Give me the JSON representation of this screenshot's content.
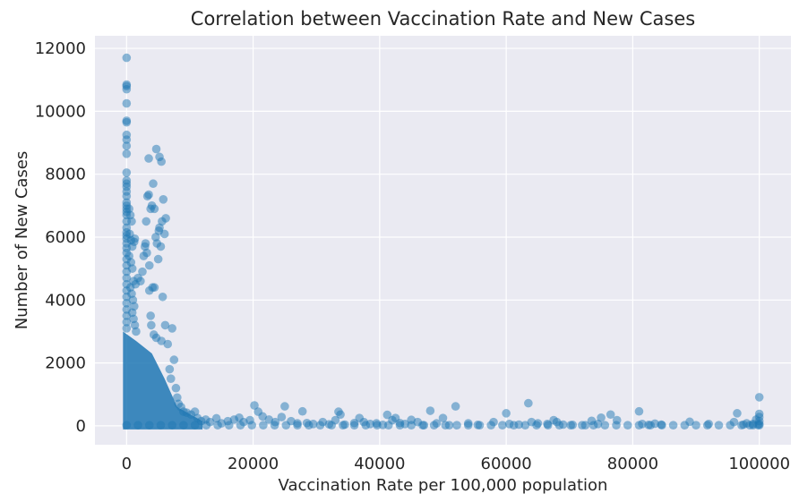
{
  "chart_data": {
    "type": "scatter",
    "title": "Correlation between Vaccination Rate and New Cases",
    "xlabel": "Vaccination Rate per 100,000 population",
    "ylabel": "Number of New Cases",
    "xlim": [
      -5000,
      105000
    ],
    "ylim": [
      -600,
      12400
    ],
    "xticks": [
      0,
      20000,
      40000,
      60000,
      80000,
      100000
    ],
    "yticks": [
      0,
      2000,
      4000,
      6000,
      8000,
      10000,
      12000
    ],
    "grid": true,
    "point_color": "#1f77b4",
    "point_alpha": 0.5,
    "series": [
      {
        "points": [
          [
            0,
            11700
          ],
          [
            0,
            10850
          ],
          [
            0,
            10800
          ],
          [
            0,
            10700
          ],
          [
            0,
            10250
          ],
          [
            0,
            9700
          ],
          [
            0,
            9650
          ],
          [
            0,
            9250
          ],
          [
            0,
            9100
          ],
          [
            0,
            8900
          ],
          [
            0,
            8650
          ],
          [
            0,
            8050
          ],
          [
            0,
            7800
          ],
          [
            0,
            7700
          ],
          [
            0,
            7600
          ],
          [
            0,
            7450
          ],
          [
            0,
            7300
          ],
          [
            0,
            7100
          ],
          [
            0,
            7000
          ],
          [
            0,
            6900
          ],
          [
            0,
            6800
          ],
          [
            0,
            6700
          ],
          [
            0,
            6500
          ],
          [
            0,
            6300
          ],
          [
            0,
            6150
          ],
          [
            0,
            6050
          ],
          [
            0,
            5950
          ],
          [
            0,
            5800
          ],
          [
            0,
            5650
          ],
          [
            0,
            5500
          ],
          [
            0,
            5300
          ],
          [
            0,
            5100
          ],
          [
            0,
            4900
          ],
          [
            0,
            4700
          ],
          [
            0,
            4500
          ],
          [
            0,
            4300
          ],
          [
            0,
            4100
          ],
          [
            0,
            3900
          ],
          [
            0,
            3700
          ],
          [
            0,
            3500
          ],
          [
            0,
            3300
          ],
          [
            0,
            3100
          ],
          [
            400,
            6900
          ],
          [
            600,
            6700
          ],
          [
            800,
            6500
          ],
          [
            500,
            6100
          ],
          [
            700,
            5900
          ],
          [
            900,
            5700
          ],
          [
            400,
            5400
          ],
          [
            700,
            5200
          ],
          [
            900,
            5000
          ],
          [
            1100,
            4600
          ],
          [
            600,
            4400
          ],
          [
            800,
            4200
          ],
          [
            1000,
            4000
          ],
          [
            1200,
            3800
          ],
          [
            900,
            3600
          ],
          [
            1100,
            3400
          ],
          [
            1300,
            3200
          ],
          [
            1500,
            3000
          ],
          [
            1400,
            4500
          ],
          [
            1200,
            5850
          ],
          [
            1300,
            5950
          ],
          [
            1800,
            4700
          ],
          [
            2200,
            4600
          ],
          [
            2500,
            4900
          ],
          [
            2700,
            5400
          ],
          [
            2900,
            5700
          ],
          [
            3000,
            5800
          ],
          [
            3100,
            6500
          ],
          [
            3300,
            7300
          ],
          [
            3500,
            7350
          ],
          [
            3800,
            6900
          ],
          [
            4000,
            7000
          ],
          [
            4200,
            7700
          ],
          [
            4400,
            6900
          ],
          [
            4600,
            6000
          ],
          [
            4800,
            5800
          ],
          [
            5000,
            5300
          ],
          [
            5100,
            6200
          ],
          [
            5200,
            6300
          ],
          [
            5400,
            5700
          ],
          [
            5600,
            6500
          ],
          [
            5800,
            7200
          ],
          [
            6000,
            6100
          ],
          [
            6200,
            6600
          ],
          [
            4700,
            8800
          ],
          [
            5200,
            8550
          ],
          [
            5500,
            8400
          ],
          [
            3500,
            8500
          ],
          [
            3200,
            5500
          ],
          [
            3600,
            5100
          ],
          [
            4100,
            4400
          ],
          [
            4400,
            4400
          ],
          [
            5700,
            4100
          ],
          [
            3800,
            3500
          ],
          [
            3600,
            4300
          ],
          [
            3900,
            3200
          ],
          [
            4300,
            2900
          ],
          [
            4700,
            2800
          ],
          [
            5500,
            2700
          ],
          [
            6100,
            3200
          ],
          [
            6500,
            2600
          ],
          [
            7200,
            3100
          ],
          [
            7500,
            2100
          ],
          [
            6800,
            1800
          ],
          [
            7000,
            1500
          ],
          [
            7800,
            1200
          ],
          [
            8000,
            900
          ],
          [
            8200,
            700
          ],
          [
            8600,
            600
          ],
          [
            9000,
            450
          ],
          [
            9500,
            420
          ],
          [
            10200,
            360
          ],
          [
            10800,
            450
          ],
          [
            11200,
            250
          ],
          [
            11800,
            150
          ],
          [
            12500,
            200
          ],
          [
            13200,
            120
          ],
          [
            14200,
            240
          ],
          [
            15000,
            80
          ],
          [
            16000,
            150
          ],
          [
            17000,
            200
          ],
          [
            17800,
            260
          ],
          [
            18500,
            120
          ],
          [
            19500,
            180
          ],
          [
            20200,
            650
          ],
          [
            20800,
            450
          ],
          [
            21500,
            300
          ],
          [
            22500,
            200
          ],
          [
            23500,
            120
          ],
          [
            24500,
            280
          ],
          [
            25000,
            620
          ],
          [
            26000,
            150
          ],
          [
            27000,
            80
          ],
          [
            27800,
            460
          ],
          [
            28500,
            90
          ],
          [
            29500,
            60
          ],
          [
            31000,
            120
          ],
          [
            32000,
            50
          ],
          [
            33000,
            180
          ],
          [
            33500,
            450
          ],
          [
            33800,
            360
          ],
          [
            34500,
            40
          ],
          [
            36000,
            90
          ],
          [
            36800,
            250
          ],
          [
            37500,
            120
          ],
          [
            38500,
            60
          ],
          [
            39500,
            80
          ],
          [
            40500,
            30
          ],
          [
            41200,
            350
          ],
          [
            42000,
            180
          ],
          [
            42500,
            250
          ],
          [
            43200,
            90
          ],
          [
            44000,
            60
          ],
          [
            45000,
            190
          ],
          [
            46000,
            120
          ],
          [
            47000,
            20
          ],
          [
            48000,
            480
          ],
          [
            49000,
            80
          ],
          [
            50000,
            250
          ],
          [
            51000,
            20
          ],
          [
            52000,
            620
          ],
          [
            54000,
            80
          ],
          [
            55500,
            30
          ],
          [
            58000,
            120
          ],
          [
            60000,
            400
          ],
          [
            60500,
            60
          ],
          [
            62000,
            40
          ],
          [
            63500,
            720
          ],
          [
            64000,
            120
          ],
          [
            65000,
            80
          ],
          [
            66500,
            60
          ],
          [
            67500,
            180
          ],
          [
            68000,
            120
          ],
          [
            69000,
            40
          ],
          [
            70500,
            30
          ],
          [
            72500,
            20
          ],
          [
            73500,
            160
          ],
          [
            74500,
            60
          ],
          [
            75000,
            260
          ],
          [
            76500,
            360
          ],
          [
            77500,
            180
          ],
          [
            81000,
            460
          ],
          [
            81500,
            60
          ],
          [
            82500,
            30
          ],
          [
            83500,
            70
          ],
          [
            84500,
            40
          ],
          [
            89000,
            130
          ],
          [
            92000,
            60
          ],
          [
            96000,
            120
          ],
          [
            96500,
            400
          ],
          [
            97500,
            40
          ],
          [
            98500,
            20
          ],
          [
            99000,
            60
          ],
          [
            99500,
            200
          ],
          [
            100000,
            910
          ],
          [
            100000,
            380
          ],
          [
            100000,
            280
          ],
          [
            100000,
            150
          ],
          [
            100000,
            60
          ],
          [
            100000,
            20
          ],
          [
            98000,
            80
          ],
          [
            99800,
            30
          ]
        ]
      }
    ]
  }
}
